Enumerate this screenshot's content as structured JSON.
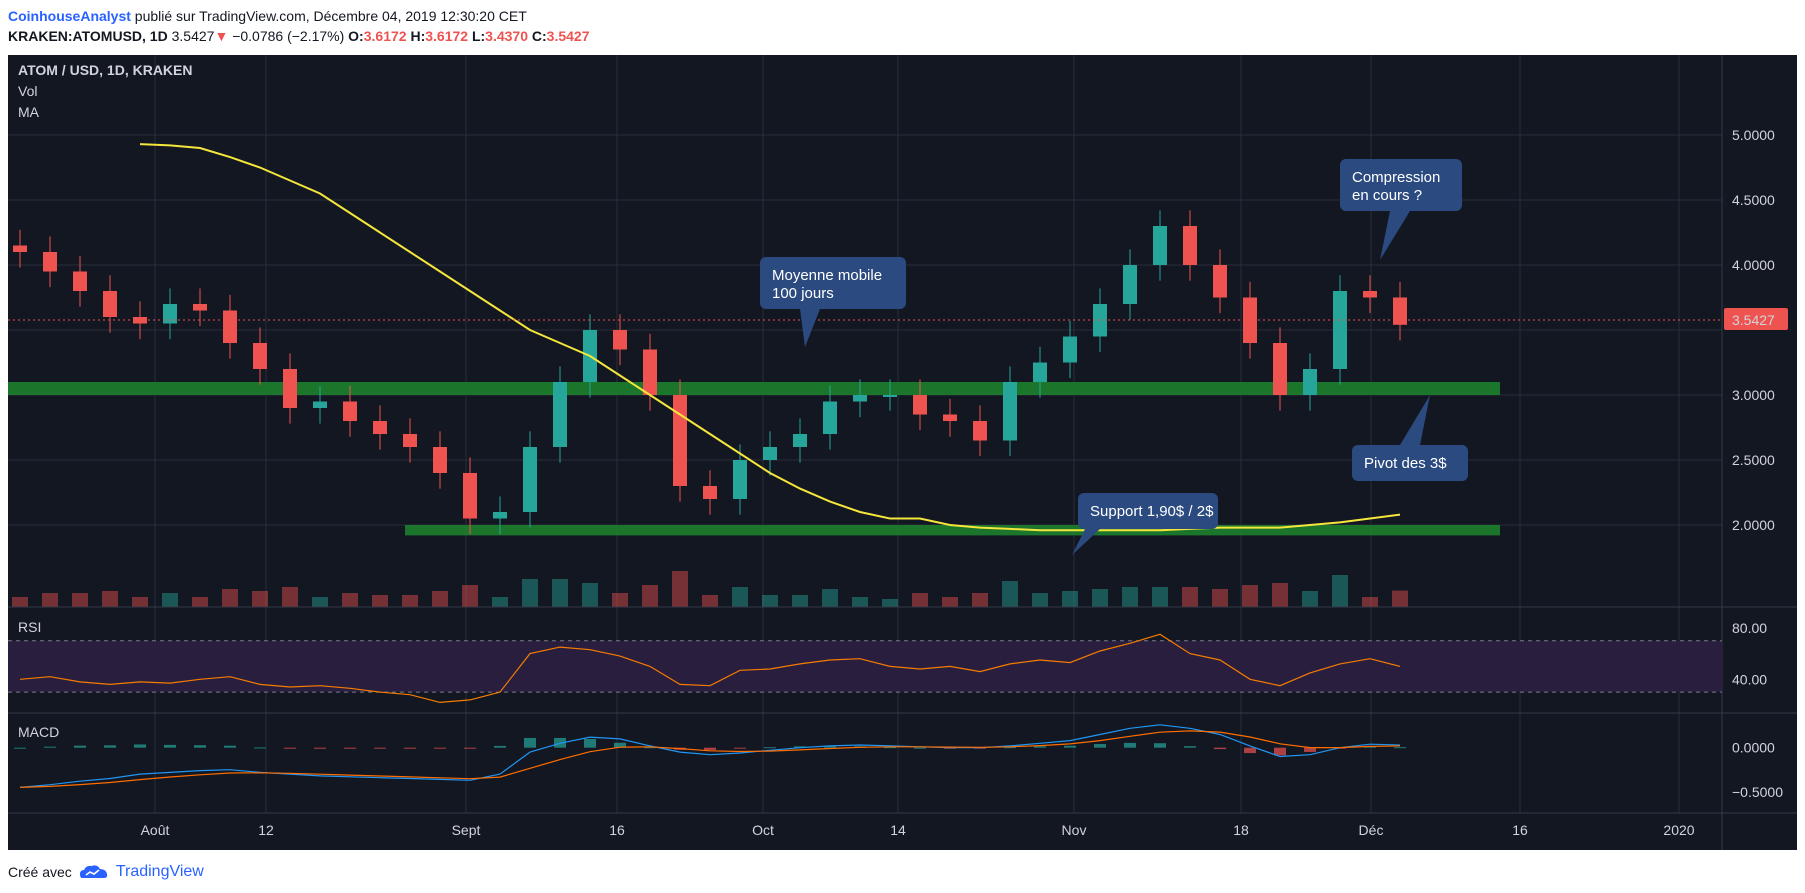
{
  "header": {
    "author": "CoinhouseAnalyst",
    "published": "publié sur TradingView.com, Décembre 04, 2019 12:30:20 CET",
    "symbol": "KRAKEN:ATOMUSD, 1D",
    "last": "3.5427",
    "down_arrow": "▼",
    "change": "−0.0786 (−2.17%)",
    "o_label": "O:",
    "o_value": "3.6172",
    "h_label": "H:",
    "h_value": "3.6172",
    "l_label": "L:",
    "l_value": "3.4370",
    "c_label": "C:",
    "c_value": "3.5427"
  },
  "legend": {
    "title": "ATOM / USD, 1D, KRAKEN",
    "vol": "Vol",
    "ma": "MA"
  },
  "rsi_label": "RSI",
  "macd_label": "MACD",
  "price_ticks": [
    "5.0000",
    "4.5000",
    "4.0000",
    "3.0000",
    "2.5000",
    "2.0000"
  ],
  "rsi_ticks": [
    "80.00",
    "40.00"
  ],
  "macd_ticks": [
    "0.0000",
    "−0.5000"
  ],
  "x_ticks": [
    "Août",
    "12",
    "Sept",
    "16",
    "Oct",
    "14",
    "Nov",
    "18",
    "Déc",
    "16",
    "2020"
  ],
  "last_price_badge": "3.5427",
  "annotations": {
    "moyenne": [
      "Moyenne mobile",
      "100 jours"
    ],
    "compression": [
      "Compression",
      "en cours ?"
    ],
    "pivot": "Pivot des 3$",
    "support": "Support 1,90$ / 2$"
  },
  "colors": {
    "background": "#131722",
    "up": "#26a69a",
    "down": "#ef5350",
    "ma": "#f5e63b",
    "zone": "#1b7a2c",
    "callout": "#2b4a7f",
    "rsi": "#f57c00",
    "macd": "#2196f3",
    "signal": "#ff6d00"
  },
  "footer": {
    "prefix": "Créé avec",
    "brand": "TradingView"
  },
  "chart_data": {
    "type": "candlestick",
    "title": "ATOM / USD, 1D, KRAKEN",
    "ylim": [
      1.7,
      5.3
    ],
    "x": [
      "Jul-20",
      "Jul-23",
      "Jul-26",
      "Jul-29",
      "Aug-01",
      "Aug-04",
      "Aug-07",
      "Aug-10",
      "Aug-13",
      "Aug-16",
      "Aug-19",
      "Aug-22",
      "Aug-25",
      "Aug-28",
      "Aug-31",
      "Sep-03",
      "Sep-06",
      "Sep-09",
      "Sep-12",
      "Sep-15",
      "Sep-18",
      "Sep-21",
      "Sep-24",
      "Sep-27",
      "Sep-30",
      "Oct-03",
      "Oct-06",
      "Oct-09",
      "Oct-12",
      "Oct-15",
      "Oct-18",
      "Oct-21",
      "Oct-24",
      "Oct-27",
      "Oct-30",
      "Nov-02",
      "Nov-05",
      "Nov-08",
      "Nov-11",
      "Nov-14",
      "Nov-17",
      "Nov-20",
      "Nov-23",
      "Nov-26",
      "Nov-29",
      "Dec-02",
      "Dec-04"
    ],
    "close": [
      4.1,
      3.95,
      3.8,
      3.6,
      3.55,
      3.7,
      3.65,
      3.4,
      3.2,
      2.9,
      2.95,
      2.8,
      2.7,
      2.6,
      2.4,
      2.05,
      2.1,
      2.6,
      3.1,
      3.5,
      3.35,
      3.0,
      2.3,
      2.2,
      2.5,
      2.6,
      2.7,
      2.95,
      3.0,
      3.0,
      2.85,
      2.8,
      2.65,
      3.1,
      3.25,
      3.45,
      3.7,
      4.0,
      4.3,
      4.0,
      3.75,
      3.4,
      3.0,
      3.2,
      3.8,
      3.75,
      3.54
    ],
    "ma100": [
      null,
      null,
      null,
      null,
      4.93,
      4.92,
      4.9,
      4.83,
      4.75,
      4.65,
      4.55,
      4.4,
      4.25,
      4.1,
      3.95,
      3.8,
      3.65,
      3.5,
      3.4,
      3.3,
      3.15,
      3.0,
      2.85,
      2.7,
      2.55,
      2.4,
      2.28,
      2.18,
      2.1,
      2.05,
      2.05,
      2.0,
      1.98,
      1.97,
      1.96,
      1.96,
      1.96,
      1.96,
      1.96,
      1.97,
      1.98,
      1.98,
      1.98,
      2.0,
      2.02,
      2.05,
      2.08
    ],
    "zones": [
      {
        "name": "Pivot des 3$",
        "low": 3.0,
        "high": 3.1
      },
      {
        "name": "Support 1,90$ / 2$",
        "low": 1.92,
        "high": 2.0
      }
    ],
    "rsi": [
      40,
      42,
      38,
      36,
      38,
      37,
      40,
      42,
      36,
      34,
      35,
      33,
      30,
      28,
      22,
      24,
      30,
      60,
      65,
      63,
      58,
      50,
      36,
      35,
      47,
      48,
      52,
      55,
      56,
      50,
      48,
      50,
      46,
      52,
      55,
      53,
      62,
      68,
      75,
      60,
      55,
      40,
      35,
      45,
      52,
      56,
      50
    ],
    "rsi_ylim": [
      20,
      90
    ],
    "macd": [
      -0.45,
      -0.42,
      -0.38,
      -0.35,
      -0.3,
      -0.28,
      -0.26,
      -0.25,
      -0.28,
      -0.3,
      -0.32,
      -0.33,
      -0.34,
      -0.35,
      -0.36,
      -0.37,
      -0.3,
      -0.05,
      0.05,
      0.12,
      0.1,
      0.02,
      -0.05,
      -0.08,
      -0.06,
      -0.03,
      0.0,
      0.02,
      0.03,
      0.02,
      0.01,
      0.0,
      0.0,
      0.02,
      0.05,
      0.08,
      0.15,
      0.22,
      0.26,
      0.22,
      0.15,
      0.02,
      -0.1,
      -0.08,
      0.0,
      0.04,
      0.03
    ],
    "macd_ylim": [
      -0.65,
      0.28
    ]
  }
}
